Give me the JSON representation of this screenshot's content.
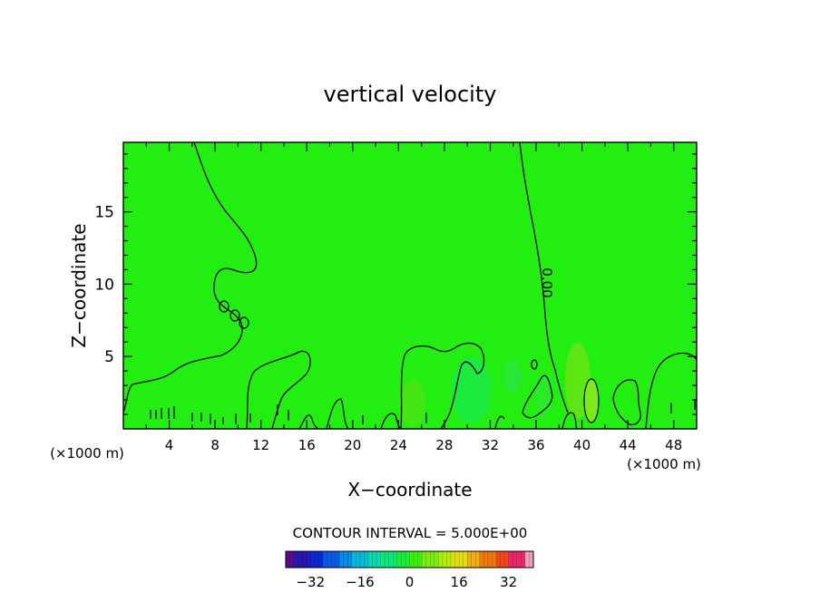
{
  "chart_data": {
    "type": "heatmap",
    "title": "vertical velocity",
    "xlabel": "X−coordinate",
    "ylabel": "Z−coordinate",
    "x_unit": "(×1000 m)",
    "x_unit_right": "(×1000 m)",
    "xlim": [
      0,
      50
    ],
    "ylim": [
      0,
      19.8
    ],
    "x_ticks": [
      "4",
      "8",
      "12",
      "16",
      "20",
      "24",
      "28",
      "32",
      "36",
      "40",
      "44",
      "48"
    ],
    "y_ticks": [
      "5",
      "10",
      "15"
    ],
    "contour_label": "0.00",
    "contour_interval_text": "CONTOUR INTERVAL = 5.000E+00",
    "colorbar": {
      "ticks": [
        "−32",
        "−16",
        "0",
        "16",
        "32"
      ],
      "range": [
        -40,
        40
      ],
      "colors": [
        "#5a0a8a",
        "#2a15b0",
        "#0a2ad8",
        "#0a5ae8",
        "#0a8ae8",
        "#0ab8d8",
        "#0ad8b0",
        "#0ae878",
        "#1aee3a",
        "#3ef010",
        "#7aef10",
        "#b0ee10",
        "#e0e010",
        "#f0b010",
        "#f07810",
        "#f04818",
        "#e8286a",
        "#f0a0b8"
      ]
    },
    "background_value": 0,
    "background_color": "#22ee11"
  }
}
